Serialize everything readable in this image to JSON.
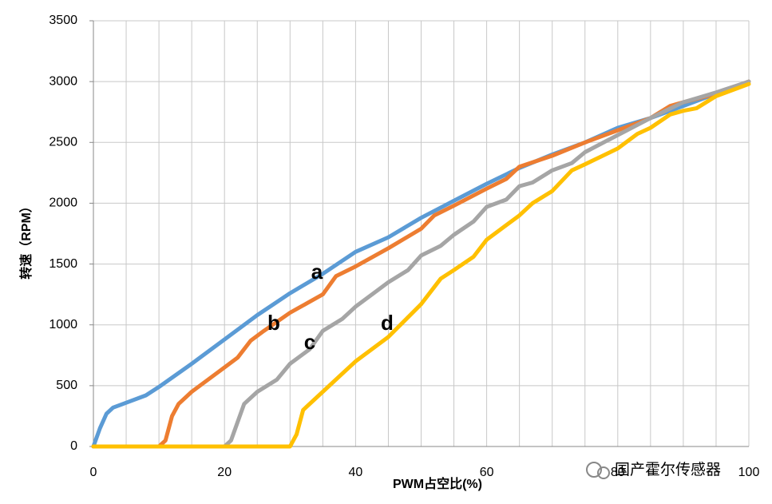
{
  "chart_data": {
    "type": "line",
    "x_label": "PWM占空比(%)",
    "y_label": "转速（RPM）",
    "xlim": [
      0,
      100
    ],
    "xticks": [
      0,
      20,
      40,
      60,
      80,
      100
    ],
    "xminorticks": [
      5,
      10,
      15,
      25,
      30,
      35,
      45,
      50,
      55,
      65,
      70,
      75,
      85,
      90,
      95
    ],
    "ylim": [
      0,
      3500
    ],
    "yticks": [
      0,
      500,
      1000,
      1500,
      2000,
      2500,
      3000,
      3500
    ],
    "grid": true,
    "watermark": "国产霍尔传感器",
    "series": [
      {
        "name": "a",
        "color": "#5b9bd5",
        "x": [
          0,
          1,
          2,
          3,
          5,
          8,
          10,
          15,
          20,
          25,
          30,
          35,
          40,
          45,
          50,
          55,
          60,
          65,
          70,
          75,
          80,
          85,
          90,
          95,
          100
        ],
        "values": [
          0,
          150,
          270,
          320,
          360,
          420,
          490,
          680,
          880,
          1080,
          1260,
          1420,
          1600,
          1720,
          1880,
          2020,
          2160,
          2290,
          2400,
          2500,
          2620,
          2700,
          2800,
          2900,
          3000
        ]
      },
      {
        "name": "b",
        "color": "#ed7d31",
        "x": [
          0,
          10,
          11,
          12,
          13,
          15,
          20,
          22,
          24,
          26,
          30,
          35,
          37,
          40,
          45,
          50,
          52,
          55,
          60,
          63,
          65,
          70,
          75,
          80,
          85,
          88,
          90,
          95,
          100
        ],
        "values": [
          0,
          0,
          50,
          250,
          350,
          450,
          650,
          730,
          870,
          950,
          1100,
          1250,
          1400,
          1480,
          1630,
          1790,
          1900,
          1980,
          2120,
          2200,
          2300,
          2390,
          2500,
          2600,
          2700,
          2800,
          2830,
          2900,
          3000
        ]
      },
      {
        "name": "c",
        "color": "#a5a5a5",
        "x": [
          0,
          20,
          21,
          22,
          23,
          25,
          28,
          30,
          33,
          35,
          38,
          40,
          43,
          45,
          48,
          50,
          53,
          55,
          58,
          60,
          63,
          65,
          67,
          70,
          73,
          75,
          80,
          85,
          90,
          95,
          100
        ],
        "values": [
          0,
          0,
          50,
          200,
          350,
          450,
          550,
          680,
          800,
          950,
          1050,
          1150,
          1270,
          1350,
          1450,
          1570,
          1650,
          1740,
          1850,
          1970,
          2030,
          2140,
          2170,
          2270,
          2330,
          2420,
          2560,
          2700,
          2830,
          2910,
          3000
        ]
      },
      {
        "name": "d",
        "color": "#ffc000",
        "x": [
          0,
          20,
          30,
          31,
          32,
          35,
          38,
          40,
          45,
          50,
          53,
          55,
          58,
          60,
          65,
          67,
          70,
          73,
          75,
          80,
          83,
          85,
          88,
          90,
          92,
          95,
          100
        ],
        "values": [
          0,
          0,
          0,
          100,
          300,
          450,
          600,
          700,
          900,
          1170,
          1380,
          1450,
          1560,
          1700,
          1900,
          2000,
          2100,
          2270,
          2320,
          2450,
          2570,
          2620,
          2730,
          2760,
          2780,
          2880,
          2980
        ]
      }
    ]
  }
}
